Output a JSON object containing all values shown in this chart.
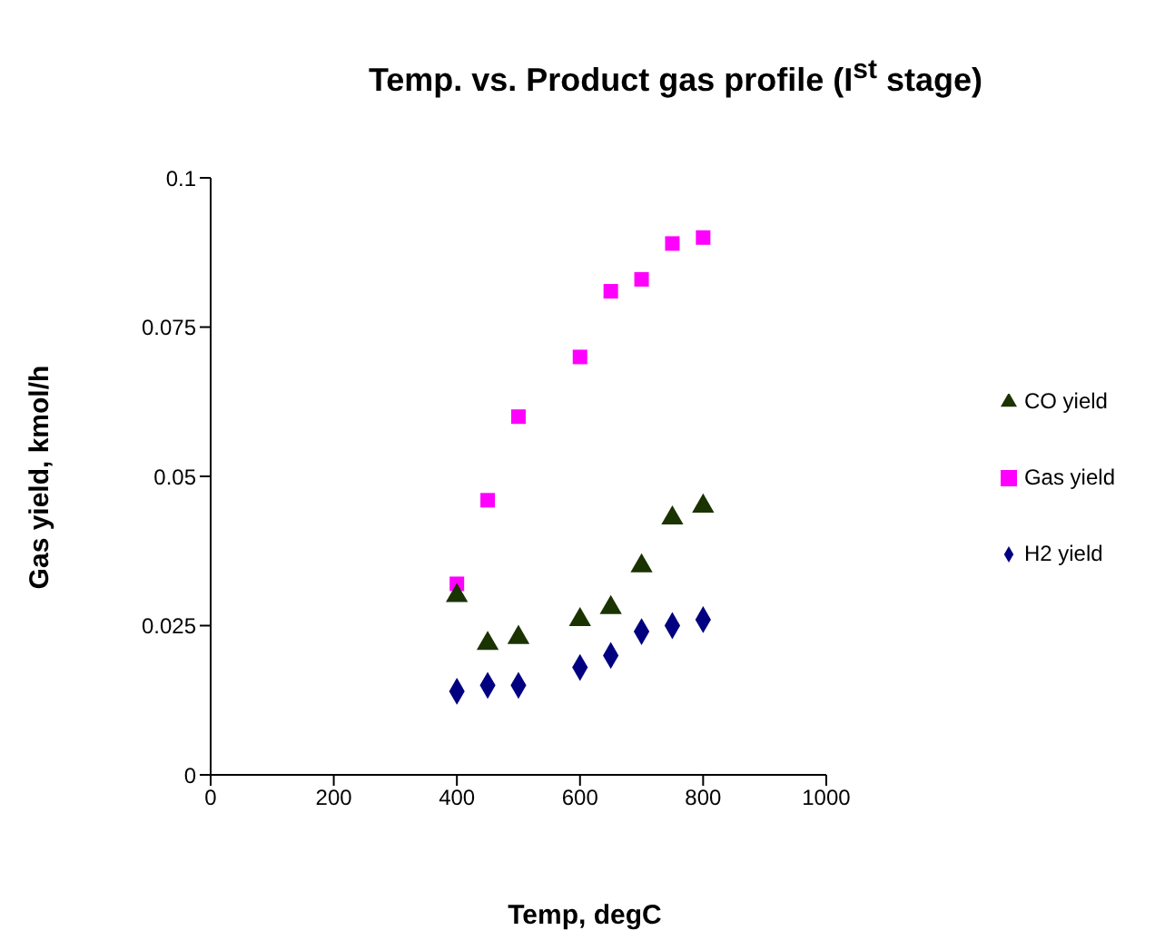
{
  "chart_data": {
    "type": "scatter",
    "title": "Temp. vs. Product gas profile (I$^{st}$ stage)",
    "xlabel": "Temp, degC",
    "ylabel": "Gas yield, kmol/h",
    "x": [
      400,
      450,
      500,
      600,
      650,
      700,
      750,
      800
    ],
    "series": [
      {
        "name": "H2 yield",
        "color": "#000080",
        "marker": "diamond",
        "values": [
          0.014,
          0.015,
          0.015,
          0.018,
          0.02,
          0.024,
          0.025,
          0.026
        ]
      },
      {
        "name": "Gas yield",
        "color": "#ff00ff",
        "marker": "square",
        "values": [
          0.032,
          0.046,
          0.06,
          0.07,
          0.081,
          0.083,
          0.089,
          0.09
        ]
      },
      {
        "name": "CO yield",
        "color": "#1a3300",
        "marker": "triangle",
        "values": [
          0.03,
          0.022,
          0.023,
          0.026,
          0.028,
          0.035,
          0.043,
          0.045
        ]
      }
    ],
    "xlim": [
      0,
      1000
    ],
    "xticks": [
      0,
      200,
      400,
      600,
      800,
      1000
    ],
    "ylim": [
      0,
      0.1
    ],
    "yticks": [
      0,
      0.025,
      0.05,
      0.075,
      0.1
    ],
    "grid": false,
    "legend": "right"
  }
}
